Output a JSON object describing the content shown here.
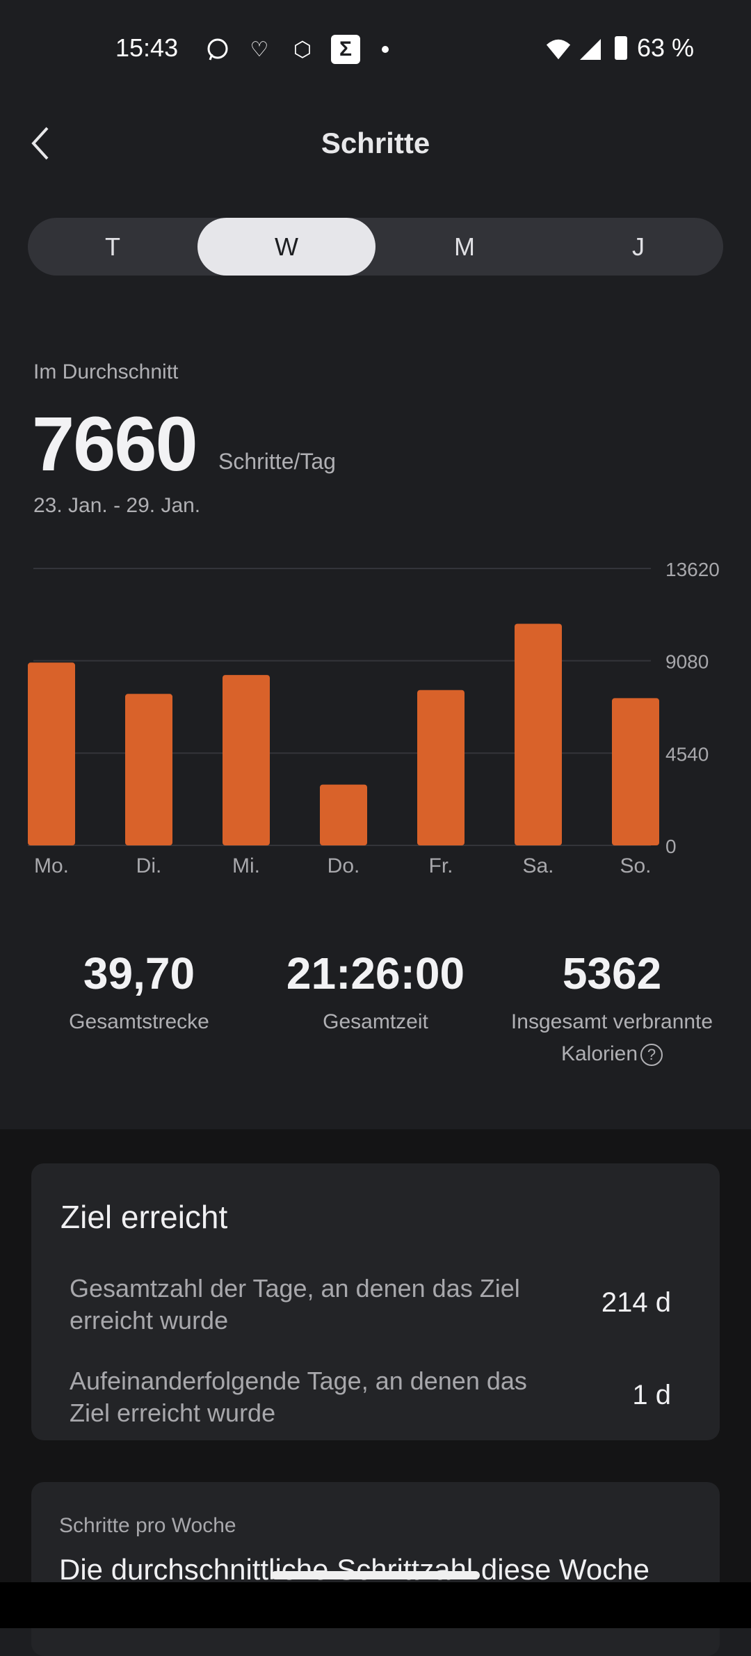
{
  "status_bar": {
    "time": "15:43",
    "battery": "63 %",
    "icons": [
      "whatsapp-icon",
      "heart-icon",
      "hexagon-icon",
      "sigma-icon",
      "dot-icon",
      "wifi-icon",
      "signal-icon",
      "battery-icon"
    ]
  },
  "header": {
    "title": "Schritte"
  },
  "tabs": [
    {
      "label": "T"
    },
    {
      "label": "W",
      "active": true
    },
    {
      "label": "M"
    },
    {
      "label": "J"
    }
  ],
  "summary": {
    "label": "Im Durchschnitt",
    "value": "7660",
    "unit": "Schritte/Tag",
    "date_range": "23. Jan. - 29. Jan."
  },
  "chart_data": {
    "type": "bar",
    "categories": [
      "Mo.",
      "Di.",
      "Mi.",
      "Do.",
      "Fr.",
      "Sa.",
      "So."
    ],
    "values": [
      8990,
      7450,
      8380,
      2990,
      7640,
      10900,
      7240
    ],
    "yticks": [
      "0",
      "4540",
      "9080",
      "13620"
    ],
    "ylim": [
      0,
      13620
    ],
    "grid": true,
    "bar_color": "#d9622a"
  },
  "stats": [
    {
      "value": "39,70",
      "label": "Gesamtstrecke"
    },
    {
      "value": "21:26:00",
      "label": "Gesamtzeit"
    },
    {
      "value": "5362",
      "label": "Insgesamt verbrannte Kalorien"
    }
  ],
  "goal_card": {
    "title": "Ziel erreicht",
    "rows": [
      {
        "label": "Gesamtzahl der Tage, an denen das Ziel erreicht wurde",
        "value": "214 d"
      },
      {
        "label": "Aufeinanderfolgende Tage, an denen das Ziel erreicht wurde",
        "value": "1 d"
      }
    ]
  },
  "weekly_card": {
    "subtitle": "Schritte pro Woche",
    "heading": "Die durchschnittliche Schrittzahl diese Woche"
  }
}
